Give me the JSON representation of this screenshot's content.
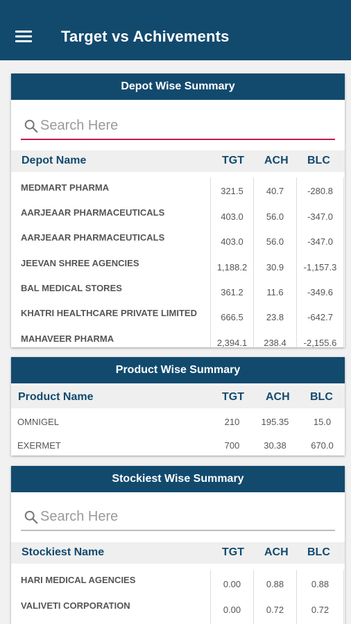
{
  "app_bar": {
    "title": "Target vs Achivements",
    "menu_icon": "hamburger-menu-icon"
  },
  "depot": {
    "title": "Depot Wise Summary",
    "search_placeholder": "Search Here",
    "headers": {
      "name": "Depot Name",
      "tgt": "TGT",
      "ach": "ACH",
      "blc": "BLC"
    },
    "rows": [
      {
        "name": "MEDMART PHARMA",
        "tgt": "321.5",
        "ach": "40.7",
        "blc": "-280.8"
      },
      {
        "name": "AARJEAAR PHARMACEUTICALS",
        "tgt": "403.0",
        "ach": "56.0",
        "blc": "-347.0"
      },
      {
        "name": "AARJEAAR PHARMACEUTICALS",
        "tgt": "403.0",
        "ach": "56.0",
        "blc": "-347.0"
      },
      {
        "name": "JEEVAN SHREE AGENCIES",
        "tgt": "1,188.2",
        "ach": "30.9",
        "blc": "-1,157.3"
      },
      {
        "name": "BAL MEDICAL STORES",
        "tgt": "361.2",
        "ach": "11.6",
        "blc": "-349.6"
      },
      {
        "name": "KHATRI HEALTHCARE PRIVATE LIMITED",
        "tgt": "666.5",
        "ach": "23.8",
        "blc": "-642.7"
      },
      {
        "name": "MAHAVEER PHARMA",
        "tgt": "2,394.1",
        "ach": "238.4",
        "blc": "-2,155.6"
      }
    ]
  },
  "product": {
    "title": "Product Wise Summary",
    "headers": {
      "name": "Product Name",
      "tgt": "TGT",
      "ach": "ACH",
      "blc": "BLC"
    },
    "rows": [
      {
        "name": "OMNIGEL",
        "tgt": "210",
        "ach": "195.35",
        "blc": "15.0"
      },
      {
        "name": "EXERMET",
        "tgt": "700",
        "ach": "30.38",
        "blc": "670.0"
      }
    ]
  },
  "stockiest": {
    "title": "Stockiest Wise Summary",
    "search_placeholder": "Search Here",
    "headers": {
      "name": "Stockiest Name",
      "tgt": "TGT",
      "ach": "ACH",
      "blc": "BLC"
    },
    "rows": [
      {
        "name": "HARI MEDICAL AGENCIES",
        "tgt": "0.00",
        "ach": "0.88",
        "blc": "0.88"
      },
      {
        "name": "VALIVETI CORPORATION",
        "tgt": "0.00",
        "ach": "0.72",
        "blc": "0.72"
      }
    ]
  },
  "colors": {
    "primary": "#124a6e",
    "accent": "#c2185b",
    "header_row_bg": "#efefef"
  }
}
